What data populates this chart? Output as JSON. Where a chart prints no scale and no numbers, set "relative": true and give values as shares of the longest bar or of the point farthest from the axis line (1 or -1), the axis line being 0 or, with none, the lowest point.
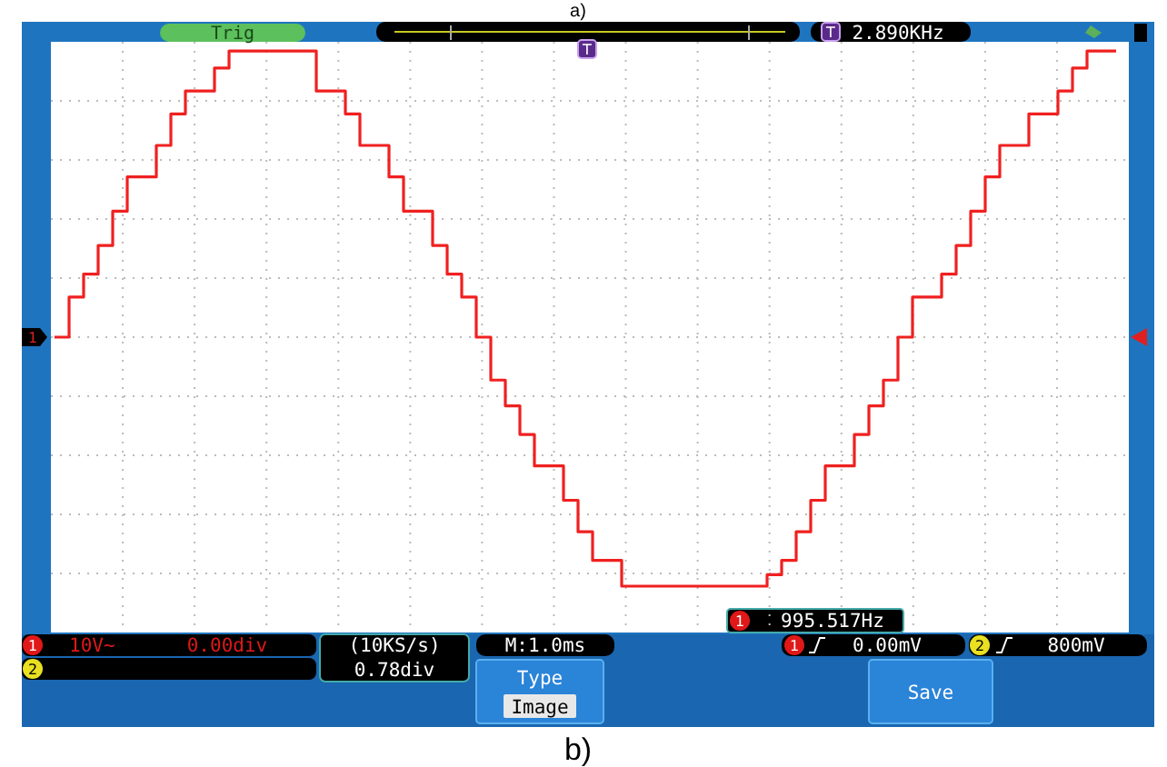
{
  "chart_data": {
    "type": "step",
    "relative": true,
    "grid": true,
    "color": "#f02020",
    "categories": [
      null,
      null,
      null,
      null,
      null,
      null,
      null,
      null,
      null,
      null,
      null,
      null,
      null,
      null,
      null,
      null,
      null,
      null,
      null,
      null,
      null,
      null,
      null,
      null,
      null,
      null,
      null,
      null,
      null,
      null,
      null,
      null,
      null,
      null,
      null,
      null,
      null,
      null,
      null,
      null,
      null,
      null,
      null,
      null,
      null,
      null,
      null,
      null,
      null,
      null,
      null,
      null,
      null,
      null,
      null,
      null,
      null,
      null,
      null,
      null,
      null,
      null,
      null,
      null,
      null,
      null,
      null,
      null,
      null,
      null,
      null,
      null,
      null,
      null
    ],
    "values": [
      0,
      0.14,
      0.22,
      0.32,
      0.44,
      0.56,
      0.56,
      0.67,
      0.78,
      0.86,
      0.86,
      0.94,
      1,
      1,
      1,
      1,
      1,
      1,
      0.86,
      0.86,
      0.78,
      0.67,
      0.67,
      0.56,
      0.44,
      0.44,
      0.32,
      0.22,
      0.14,
      0,
      -0.15,
      -0.24,
      -0.34,
      -0.45,
      -0.45,
      -0.57,
      -0.68,
      -0.78,
      -0.78,
      -0.87,
      -0.87,
      -0.87,
      -0.87,
      -0.87,
      -0.87,
      -0.87,
      -0.87,
      -0.87,
      -0.87,
      -0.83,
      -0.78,
      -0.68,
      -0.57,
      -0.45,
      -0.45,
      -0.34,
      -0.24,
      -0.15,
      0,
      0.14,
      0.14,
      0.22,
      0.32,
      0.44,
      0.56,
      0.67,
      0.67,
      0.78,
      0.78,
      0.86,
      0.94,
      1,
      1,
      1
    ],
    "annotations": [
      "a)",
      "Trig",
      "T",
      "2.890KHz",
      "T",
      "1",
      "995.517Hz",
      "1",
      "1",
      "10V~",
      "0.00div",
      "2",
      "(10KS/s)",
      "0.78div",
      "M:1.0ms",
      "1",
      "0.00mV",
      "2",
      "800mV",
      "Type",
      "Image",
      "Save",
      "b)"
    ]
  }
}
